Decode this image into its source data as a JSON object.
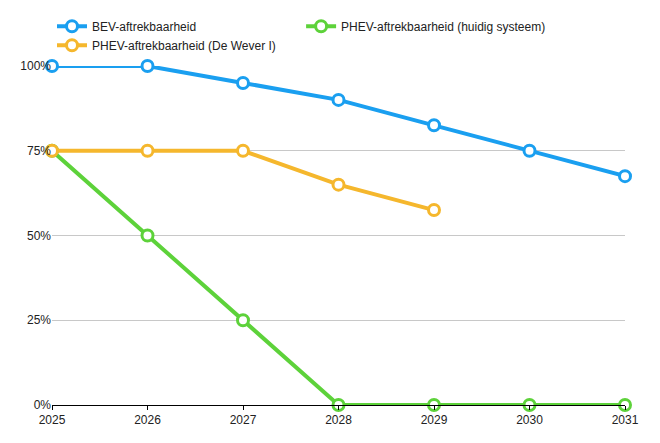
{
  "chart_data": {
    "type": "line",
    "x": [
      2025,
      2026,
      2027,
      2028,
      2029,
      2030,
      2031
    ],
    "xlim": [
      2025,
      2031
    ],
    "xticks": [
      2025,
      2026,
      2027,
      2028,
      2029,
      2030,
      2031
    ],
    "ylim": [
      0,
      100
    ],
    "yticks": [
      {
        "value": 0,
        "label": "0%"
      },
      {
        "value": 25,
        "label": "25%"
      },
      {
        "value": 50,
        "label": "50%"
      },
      {
        "value": 75,
        "label": "75%"
      },
      {
        "value": 100,
        "label": "100%"
      }
    ],
    "grid": true,
    "legend": "top",
    "marker": "circle",
    "line_style": "solid",
    "series": [
      {
        "name": "BEV-aftrekbaarheid",
        "color": "#1a9ff0",
        "values": [
          100,
          100,
          95,
          90,
          82.5,
          75,
          67.5
        ]
      },
      {
        "name": "PHEV-aftrekbaarheid (huidig systeem)",
        "color": "#5dd23a",
        "values": [
          75,
          50,
          25,
          0,
          0,
          0,
          0
        ]
      },
      {
        "name": "PHEV-aftrekbaarheid (De Wever I)",
        "color": "#f5b72d",
        "values": [
          75,
          75,
          75,
          65,
          57.5,
          null,
          null
        ]
      }
    ]
  }
}
